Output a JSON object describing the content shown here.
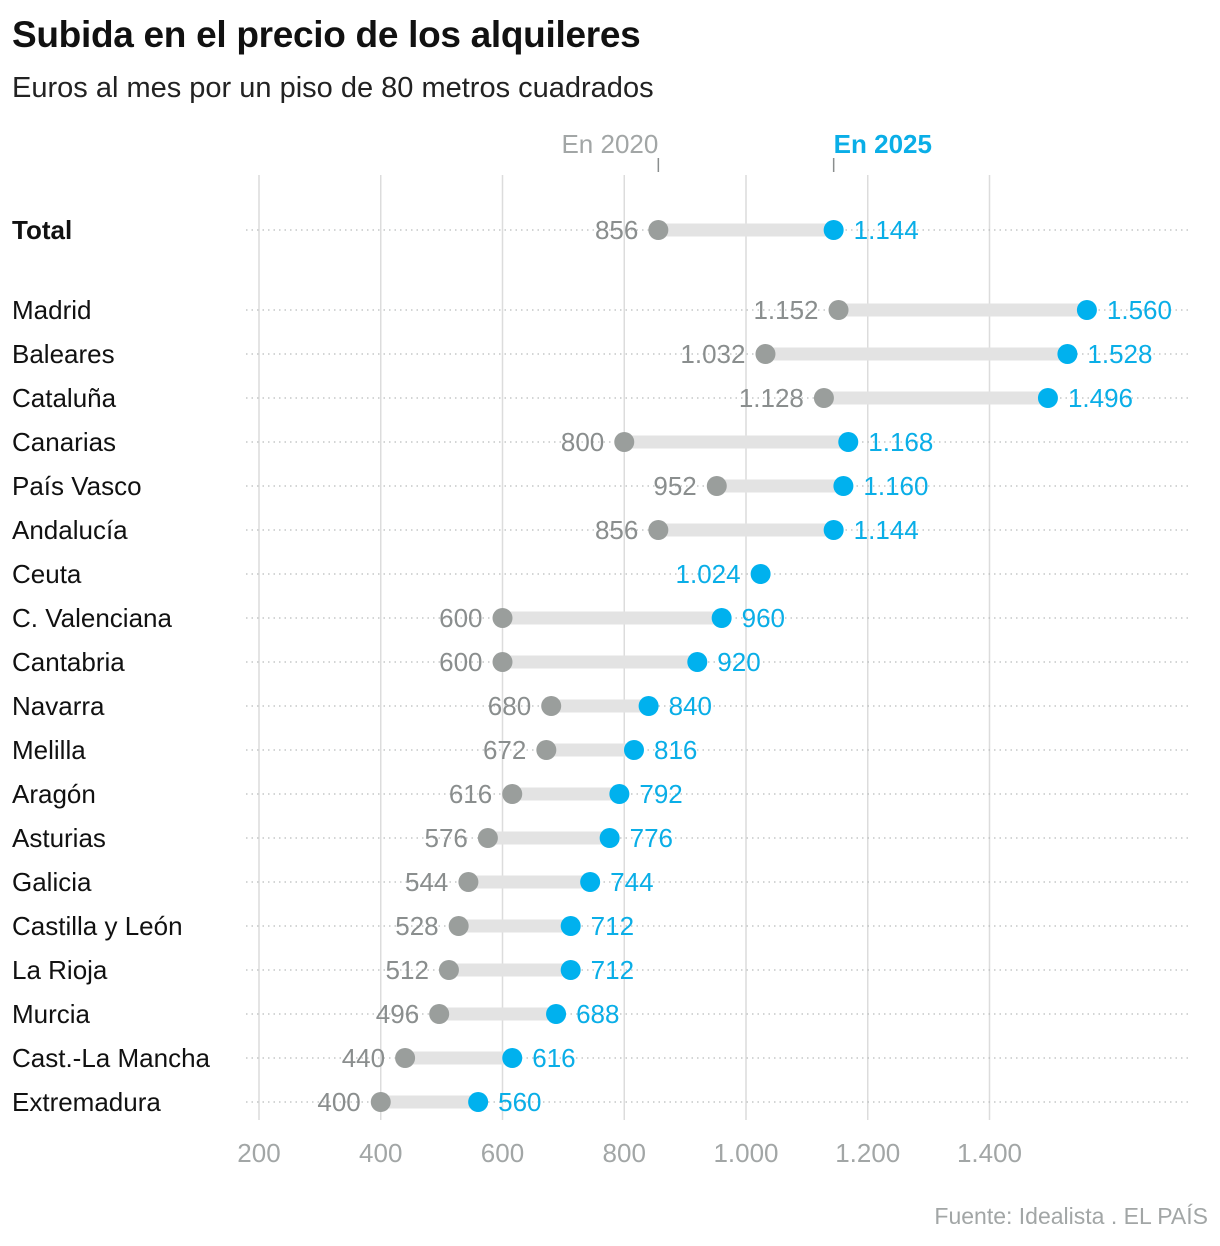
{
  "title": "Subida en el precio de los alquileres",
  "subtitle": "Euros al mes por un piso de 80 metros cuadrados",
  "source": "Fuente: Idealista . EL PAÍS",
  "colors": {
    "y2020": "#9a9e9c",
    "y2025": "#00b1ee",
    "bar": "#e3e3e3",
    "grid": "#dcdcdc"
  },
  "chart_data": {
    "type": "dumbbell",
    "xlim": [
      200,
      1600
    ],
    "x_ticks": [
      200,
      400,
      600,
      800,
      1000,
      1200,
      1400
    ],
    "x_tick_labels": [
      "200",
      "400",
      "600",
      "800",
      "1.000",
      "1.200",
      "1.400"
    ],
    "legend": {
      "start": "En 2020",
      "end": "En 2025",
      "start_value": 856,
      "end_value": 1144
    },
    "rows": [
      {
        "label": "Total",
        "bold": true,
        "v2020": 856,
        "v2025": 1144,
        "l2020": "856",
        "l2025": "1.144"
      },
      {
        "label": "Madrid",
        "v2020": 1152,
        "v2025": 1560,
        "l2020": "1.152",
        "l2025": "1.560"
      },
      {
        "label": "Baleares",
        "v2020": 1032,
        "v2025": 1528,
        "l2020": "1.032",
        "l2025": "1.528"
      },
      {
        "label": "Cataluña",
        "v2020": 1128,
        "v2025": 1496,
        "l2020": "1.128",
        "l2025": "1.496"
      },
      {
        "label": "Canarias",
        "v2020": 800,
        "v2025": 1168,
        "l2020": "800",
        "l2025": "1.168"
      },
      {
        "label": "País Vasco",
        "v2020": 952,
        "v2025": 1160,
        "l2020": "952",
        "l2025": "1.160"
      },
      {
        "label": "Andalucía",
        "v2020": 856,
        "v2025": 1144,
        "l2020": "856",
        "l2025": "1.144"
      },
      {
        "label": "Ceuta",
        "v2020": null,
        "v2025": 1024,
        "l2020": "",
        "l2025": "1.024"
      },
      {
        "label": "C. Valenciana",
        "v2020": 600,
        "v2025": 960,
        "l2020": "600",
        "l2025": "960"
      },
      {
        "label": "Cantabria",
        "v2020": 600,
        "v2025": 920,
        "l2020": "600",
        "l2025": "920"
      },
      {
        "label": "Navarra",
        "v2020": 680,
        "v2025": 840,
        "l2020": "680",
        "l2025": "840"
      },
      {
        "label": "Melilla",
        "v2020": 672,
        "v2025": 816,
        "l2020": "672",
        "l2025": "816"
      },
      {
        "label": "Aragón",
        "v2020": 616,
        "v2025": 792,
        "l2020": "616",
        "l2025": "792"
      },
      {
        "label": "Asturias",
        "v2020": 576,
        "v2025": 776,
        "l2020": "576",
        "l2025": "776"
      },
      {
        "label": "Galicia",
        "v2020": 544,
        "v2025": 744,
        "l2020": "544",
        "l2025": "744"
      },
      {
        "label": "Castilla y León",
        "v2020": 528,
        "v2025": 712,
        "l2020": "528",
        "l2025": "712"
      },
      {
        "label": "La Rioja",
        "v2020": 512,
        "v2025": 712,
        "l2020": "512",
        "l2025": "712"
      },
      {
        "label": "Murcia",
        "v2020": 496,
        "v2025": 688,
        "l2020": "496",
        "l2025": "688"
      },
      {
        "label": "Cast.-La Mancha",
        "v2020": 440,
        "v2025": 616,
        "l2020": "440",
        "l2025": "616"
      },
      {
        "label": "Extremadura",
        "v2020": 400,
        "v2025": 560,
        "l2020": "400",
        "l2025": "560"
      }
    ]
  }
}
